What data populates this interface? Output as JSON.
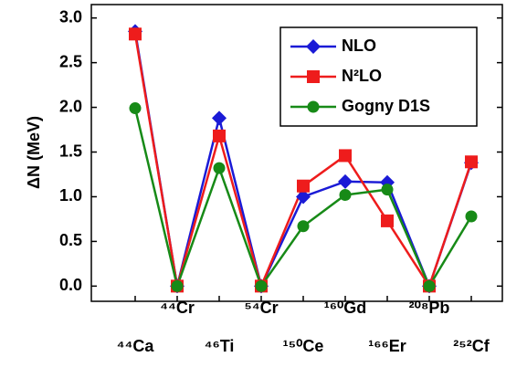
{
  "chart_data": {
    "type": "line",
    "y_label": "ΔN (MeV)",
    "categories": [
      "⁴⁴Ca",
      "⁴⁴Cr",
      "⁴⁶Ti",
      "⁵⁴Cr",
      "¹⁵⁰Ce",
      "¹⁶⁰Gd",
      "¹⁶⁶Er",
      "²⁰⁸Pb",
      "²⁵²Cf"
    ],
    "series": [
      {
        "name": "NLO",
        "color": "#1a1ad6",
        "marker": "diamond",
        "values": [
          2.85,
          0,
          1.88,
          0,
          1.0,
          1.17,
          1.16,
          0,
          1.38
        ]
      },
      {
        "name": "N²LO",
        "color": "#ee1c1c",
        "marker": "square",
        "values": [
          2.82,
          0,
          1.68,
          0,
          1.12,
          1.46,
          0.73,
          0,
          1.39
        ]
      },
      {
        "name": "Gogny D1S",
        "color": "#178a17",
        "marker": "circle",
        "values": [
          1.99,
          0,
          1.32,
          0,
          0.67,
          1.02,
          1.08,
          0,
          0.78
        ]
      }
    ],
    "ylim": [
      -0.17,
      3.15
    ],
    "yticks": [
      {
        "value": 0,
        "label": "0.0"
      },
      {
        "value": 0.5,
        "label": "0.5"
      },
      {
        "value": 1,
        "label": "1.0"
      },
      {
        "value": 1.5,
        "label": "1.5"
      },
      {
        "value": 2,
        "label": "2.0"
      },
      {
        "value": 2.5,
        "label": "2.5"
      },
      {
        "value": 3,
        "label": "3.0"
      }
    ],
    "legend": "upper-right"
  }
}
